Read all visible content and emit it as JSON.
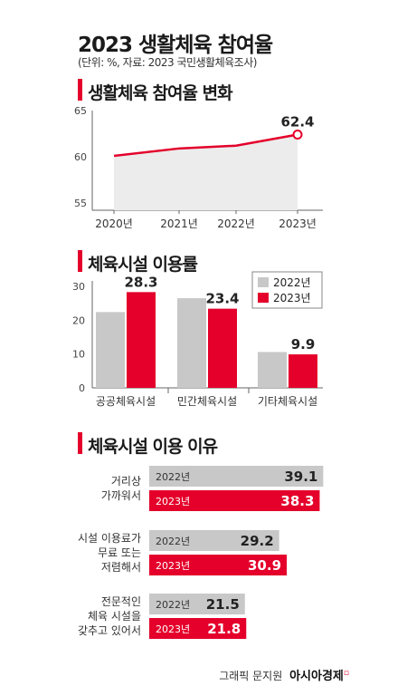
{
  "header": {
    "title": "2023 생활체육 참여율",
    "subtitle": "(단위: %, 자료: 2023 국민생활체육조사)"
  },
  "colors": {
    "accent": "#e4002b",
    "gray": "#c8c8c8",
    "area": "#ececec"
  },
  "sections": {
    "participation": "생활체육 참여율 변화",
    "facility_usage": "체육시설 이용률",
    "facility_reason": "체육시설 이용 이유"
  },
  "footer": {
    "credit": "그래픽 문지원",
    "brand": "아시아경제"
  },
  "chart_data": [
    {
      "type": "area",
      "title": "생활체육 참여율 변화",
      "x": [
        "2020년",
        "2021년",
        "2022년",
        "2023년"
      ],
      "series": [
        {
          "values": [
            60.1,
            60.9,
            61.2,
            62.4
          ]
        }
      ],
      "ylim": [
        55,
        65
      ],
      "yticks": [
        "55",
        "60",
        "65"
      ],
      "data_labels": [
        {
          "x": "2023년",
          "text": "62.4"
        }
      ],
      "grid": false
    },
    {
      "type": "bar",
      "title": "체육시설 이용률",
      "categories": [
        "공공체육시설",
        "민간체육시설",
        "기타체육시설"
      ],
      "series": [
        {
          "name": "2022년",
          "values": [
            22.4,
            26.5,
            10.6
          ]
        },
        {
          "name": "2023년",
          "values": [
            28.3,
            23.4,
            9.9
          ]
        }
      ],
      "data_labels": [
        "28.3",
        "23.4",
        "9.9"
      ],
      "ylim": [
        0,
        30
      ],
      "yticks": [
        "0",
        "10",
        "20",
        "30"
      ],
      "legend": "top-right"
    },
    {
      "type": "bar",
      "orientation": "horizontal",
      "title": "체육시설 이용 이유",
      "categories": [
        [
          "거리상",
          "가까워서"
        ],
        [
          "시설 이용료가",
          "무료 또는",
          "저렴해서"
        ],
        [
          "전문적인",
          "체육 시설을",
          "갖추고 있어서"
        ]
      ],
      "series": [
        {
          "name": "2022년",
          "values": [
            39.1,
            29.2,
            21.5
          ],
          "labels": [
            "39.1",
            "29.2",
            "21.5"
          ]
        },
        {
          "name": "2023년",
          "values": [
            38.3,
            30.9,
            21.8
          ],
          "labels": [
            "38.3",
            "30.9",
            "21.8"
          ]
        }
      ]
    }
  ]
}
